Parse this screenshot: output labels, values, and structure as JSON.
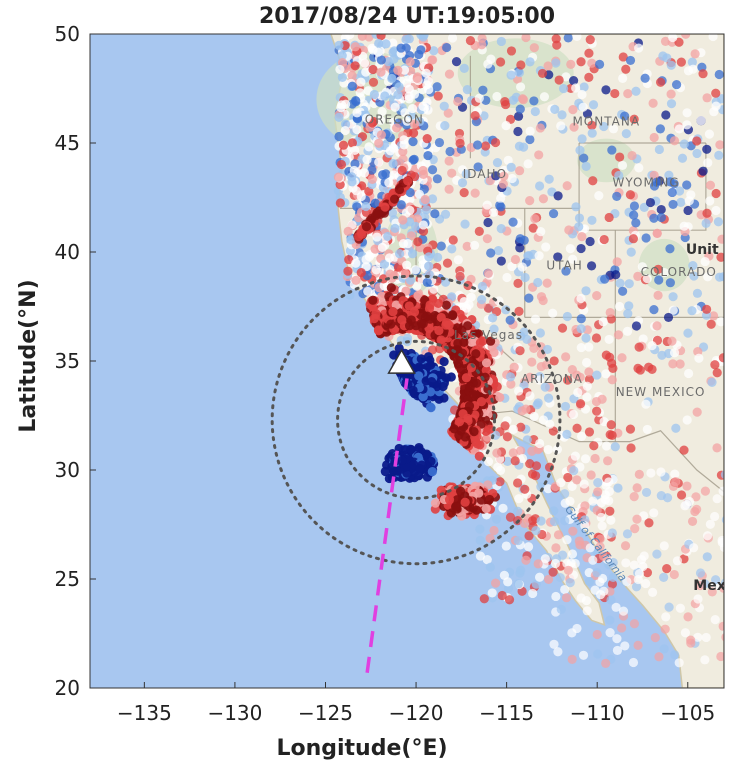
{
  "chart_data": {
    "type": "scatter",
    "title": "2017/08/24 UT:19:05:00",
    "xlabel": "Longitude(°E)",
    "ylabel": "Latitude(°N)",
    "xlim": [
      -138,
      -103
    ],
    "ylim": [
      20,
      50
    ],
    "xticks": [
      -135,
      -130,
      -125,
      -120,
      -115,
      -110,
      -105
    ],
    "yticks": [
      20,
      25,
      30,
      35,
      40,
      45,
      50
    ],
    "x_tick_labels": [
      "−135",
      "−130",
      "−125",
      "−120",
      "−115",
      "−110",
      "−105"
    ],
    "y_tick_labels": [
      "20",
      "25",
      "30",
      "35",
      "40",
      "45",
      "50"
    ],
    "grid": false,
    "marker": {
      "lon": -120.8,
      "lat": 34.9,
      "symbol": "white triangle"
    },
    "rings": {
      "center": [
        -120,
        32.3
      ],
      "radii_deg_lat": [
        3.6,
        6.6
      ],
      "style": "dotted"
    },
    "track": {
      "lon": [
        -122.7,
        -120.5
      ],
      "lat": [
        20.7,
        34.2
      ],
      "color": "#e040e0",
      "style": "dashed"
    },
    "color_scale": [
      "#0a1a8a",
      "#3a6fd0",
      "#9ec4ef",
      "#ffffff",
      "#f3a3a3",
      "#e04040",
      "#8a1010"
    ],
    "colors": {
      "ocean": "#a8c7f0",
      "land": "#f0ecdf",
      "coast": "#cfc7a8",
      "ring": "#555555",
      "marker_fill": "#ffffff"
    },
    "map_labels": [
      {
        "text": "OREGON",
        "lon": -121.2,
        "lat": 45.9,
        "style": "state"
      },
      {
        "text": "MONTANA",
        "lon": -109.5,
        "lat": 45.8,
        "style": "state"
      },
      {
        "text": "IDAHO",
        "lon": -116.2,
        "lat": 43.4,
        "style": "state"
      },
      {
        "text": "WYOMING",
        "lon": -107.3,
        "lat": 43.0,
        "style": "state"
      },
      {
        "text": "UTAH",
        "lon": -111.8,
        "lat": 39.2,
        "style": "state"
      },
      {
        "text": "COLORADO",
        "lon": -105.5,
        "lat": 38.9,
        "style": "state"
      },
      {
        "text": "Unit",
        "lon": -104.2,
        "lat": 39.9,
        "style": "country"
      },
      {
        "text": "Las Vegas",
        "lon": -116.0,
        "lat": 36.0,
        "style": "state"
      },
      {
        "text": "ARIZONA",
        "lon": -112.5,
        "lat": 34.0,
        "style": "state"
      },
      {
        "text": "NEW MEXICO",
        "lon": -106.5,
        "lat": 33.4,
        "style": "state"
      },
      {
        "text": "Mex",
        "lon": -103.8,
        "lat": 24.5,
        "style": "country"
      }
    ],
    "gulf_label": "Gulf of California"
  }
}
